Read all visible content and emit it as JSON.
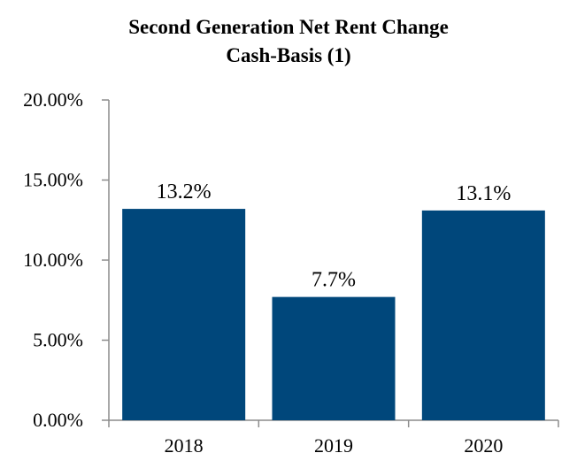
{
  "chart_data": {
    "type": "bar",
    "title": "Second Generation Net Rent Change",
    "subtitle": "Cash-Basis (1)",
    "categories": [
      "2018",
      "2019",
      "2020"
    ],
    "values": [
      13.2,
      7.7,
      13.1
    ],
    "data_labels": [
      "13.2%",
      "7.7%",
      "13.1%"
    ],
    "ylim": [
      0,
      20
    ],
    "yticks": [
      0,
      5,
      10,
      15,
      20
    ],
    "ytick_labels": [
      "0.00%",
      "5.00%",
      "10.00%",
      "15.00%",
      "20.00%"
    ],
    "xlabel": "",
    "ylabel": "",
    "grid": false,
    "legend": "none",
    "bar_color": "#00477B"
  }
}
